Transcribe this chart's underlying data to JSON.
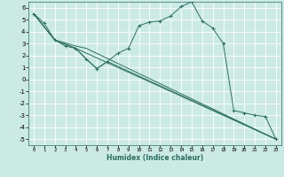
{
  "xlabel": "Humidex (Indice chaleur)",
  "bg_color": "#cceae4",
  "grid_color": "#ffffff",
  "line_color": "#2a6e60",
  "xlim": [
    -0.5,
    23.5
  ],
  "ylim": [
    -5.5,
    6.5
  ],
  "xticks": [
    0,
    1,
    2,
    3,
    4,
    5,
    6,
    7,
    8,
    9,
    10,
    11,
    12,
    13,
    14,
    15,
    16,
    17,
    18,
    19,
    20,
    21,
    22,
    23
  ],
  "yticks": [
    -5,
    -4,
    -3,
    -2,
    -1,
    0,
    1,
    2,
    3,
    4,
    5,
    6
  ],
  "main_line": {
    "x": [
      0,
      1,
      2,
      3,
      4,
      5,
      6,
      7,
      8,
      9,
      10,
      11,
      12,
      13,
      14,
      15,
      16,
      17,
      18,
      19,
      20,
      21,
      22,
      23
    ],
    "y": [
      5.5,
      4.7,
      3.3,
      2.8,
      2.6,
      1.7,
      0.9,
      1.5,
      2.2,
      2.6,
      4.5,
      4.8,
      4.9,
      5.3,
      6.1,
      6.5,
      4.9,
      4.3,
      3.0,
      -2.6,
      -2.8,
      -3.0,
      -3.1,
      -5.0
    ]
  },
  "envelope_lines": [
    {
      "x": [
        0,
        2,
        4,
        5,
        6,
        7,
        23
      ],
      "y": [
        5.5,
        3.3,
        2.6,
        1.7,
        0.9,
        1.5,
        -5.0
      ]
    },
    {
      "x": [
        0,
        2,
        4,
        5,
        23
      ],
      "y": [
        5.5,
        3.3,
        2.6,
        2.2,
        -5.0
      ]
    },
    {
      "x": [
        0,
        2,
        4,
        5,
        23
      ],
      "y": [
        5.5,
        3.3,
        2.8,
        2.6,
        -5.0
      ]
    }
  ]
}
